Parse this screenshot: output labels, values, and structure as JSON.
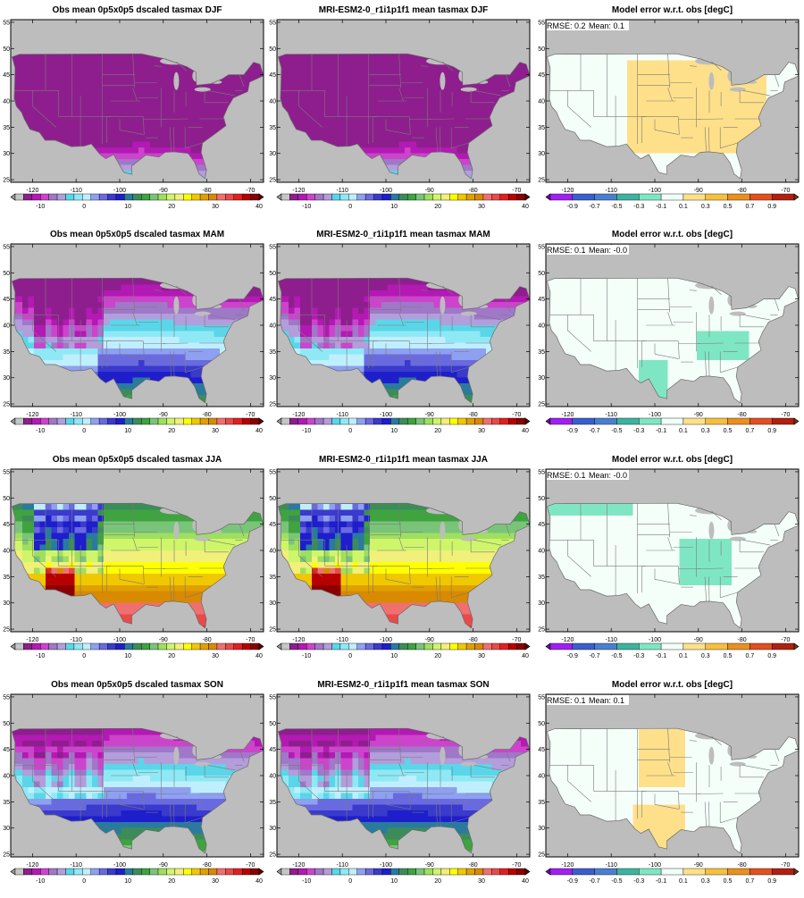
{
  "obs_title_prefix": "Obs mean 0p5x0p5 dscaled tasmax",
  "model_title_prefix": "MRI-ESM2-0_r1i1p1f1 mean tasmax",
  "error_title": "Model error w.r.t. obs [degC]",
  "seasons": [
    "DJF",
    "MAM",
    "JJA",
    "SON"
  ],
  "stats": [
    {
      "rmse": "RMSE: 0.2",
      "mean": "Mean: 0.1"
    },
    {
      "rmse": "RMSE: 0.1",
      "mean": "Mean: -0.0"
    },
    {
      "rmse": "RMSE: 0.1",
      "mean": "Mean: -0.0"
    },
    {
      "rmse": "RMSE: 0.1",
      "mean": "Mean: 0.1"
    }
  ],
  "lon_ticks": [
    "-120",
    "-110",
    "-100",
    "-90",
    "-80",
    "-70"
  ],
  "lat_ticks": [
    "25",
    "30",
    "35",
    "40",
    "45",
    "50",
    "55"
  ],
  "temp_colorbar": {
    "labels": [
      "-10",
      "0",
      "10",
      "20",
      "30",
      "40"
    ],
    "colors": [
      "#9b9b9b",
      "#c6c6c6",
      "#8e1e8e",
      "#b319b3",
      "#cc44cc",
      "#9f78c8",
      "#b39ddb",
      "#5ad6e8",
      "#8ee9f5",
      "#bfefff",
      "#8ea0f0",
      "#6a6ae0",
      "#3a3acd",
      "#1e1ecc",
      "#2a7a9e",
      "#3c8c5a",
      "#3fa33f",
      "#7ac47a",
      "#9fdf5f",
      "#cff56a",
      "#f0f07a",
      "#ffff00",
      "#f0c800",
      "#e0a000",
      "#d98a00",
      "#f07070",
      "#e84a4a",
      "#e02020",
      "#b80000",
      "#8a0000",
      "#5a0000"
    ]
  },
  "error_colorbar": {
    "labels": [
      "-0.9",
      "-0.7",
      "-0.5",
      "-0.3",
      "-0.1",
      "0.1",
      "0.3",
      "0.5",
      "0.7",
      "0.9"
    ],
    "colors": [
      "#6a0dad",
      "#a020f0",
      "#3a5fcd",
      "#4a7fd0",
      "#3cb3a0",
      "#7fe6c4",
      "#f0fff8",
      "#ffe08a",
      "#f5c040",
      "#e89020",
      "#e05020",
      "#b02010",
      "#6b3a10"
    ]
  },
  "chart_data": [
    {
      "type": "heatmap",
      "title": "Obs mean 0p5x0p5 dscaled tasmax DJF",
      "xlim": [
        -125,
        -67
      ],
      "ylim": [
        24.5,
        55.5
      ],
      "colorbar_range": [
        -10,
        40
      ]
    },
    {
      "type": "heatmap",
      "title": "MRI-ESM2-0_r1i1p1f1 mean tasmax DJF",
      "xlim": [
        -125,
        -67
      ],
      "ylim": [
        24.5,
        55.5
      ],
      "colorbar_range": [
        -10,
        40
      ]
    },
    {
      "type": "heatmap",
      "title": "Model error w.r.t. obs [degC]",
      "season": "DJF",
      "rmse": 0.2,
      "mean": 0.1,
      "colorbar_range": [
        -0.9,
        0.9
      ]
    },
    {
      "type": "heatmap",
      "title": "Obs mean 0p5x0p5 dscaled tasmax MAM",
      "xlim": [
        -125,
        -67
      ],
      "ylim": [
        24.5,
        55.5
      ],
      "colorbar_range": [
        -10,
        40
      ]
    },
    {
      "type": "heatmap",
      "title": "MRI-ESM2-0_r1i1p1f1 mean tasmax MAM",
      "xlim": [
        -125,
        -67
      ],
      "ylim": [
        24.5,
        55.5
      ],
      "colorbar_range": [
        -10,
        40
      ]
    },
    {
      "type": "heatmap",
      "title": "Model error w.r.t. obs [degC]",
      "season": "MAM",
      "rmse": 0.1,
      "mean": -0.0,
      "colorbar_range": [
        -0.9,
        0.9
      ]
    },
    {
      "type": "heatmap",
      "title": "Obs mean 0p5x0p5 dscaled tasmax JJA",
      "xlim": [
        -125,
        -67
      ],
      "ylim": [
        24.5,
        55.5
      ],
      "colorbar_range": [
        -10,
        40
      ]
    },
    {
      "type": "heatmap",
      "title": "MRI-ESM2-0_r1i1p1f1 mean tasmax JJA",
      "xlim": [
        -125,
        -67
      ],
      "ylim": [
        24.5,
        55.5
      ],
      "colorbar_range": [
        -10,
        40
      ]
    },
    {
      "type": "heatmap",
      "title": "Model error w.r.t. obs [degC]",
      "season": "JJA",
      "rmse": 0.1,
      "mean": -0.0,
      "colorbar_range": [
        -0.9,
        0.9
      ]
    },
    {
      "type": "heatmap",
      "title": "Obs mean 0p5x0p5 dscaled tasmax SON",
      "xlim": [
        -125,
        -67
      ],
      "ylim": [
        24.5,
        55.5
      ],
      "colorbar_range": [
        -10,
        40
      ]
    },
    {
      "type": "heatmap",
      "title": "MRI-ESM2-0_r1i1p1f1 mean tasmax SON",
      "xlim": [
        -125,
        -67
      ],
      "ylim": [
        24.5,
        55.5
      ],
      "colorbar_range": [
        -10,
        40
      ]
    },
    {
      "type": "heatmap",
      "title": "Model error w.r.t. obs [degC]",
      "season": "SON",
      "rmse": 0.1,
      "mean": 0.1,
      "colorbar_range": [
        -0.9,
        0.9
      ]
    }
  ]
}
